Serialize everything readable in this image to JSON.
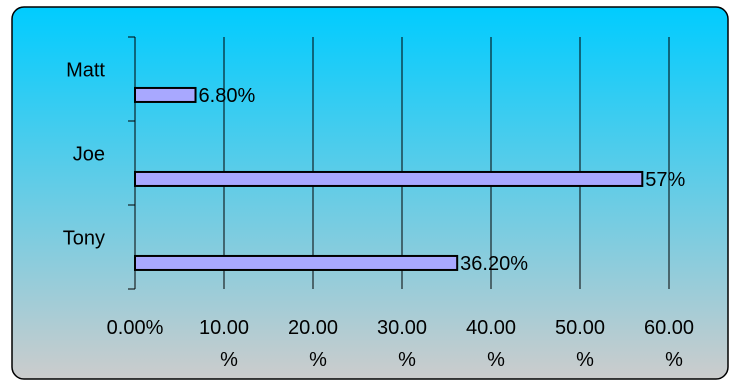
{
  "chart_data": {
    "type": "bar",
    "orientation": "horizontal",
    "categories": [
      "Tony",
      "Joe",
      "Matt"
    ],
    "values": [
      36.2,
      57,
      6.8
    ],
    "data_labels": [
      "36.20%",
      "57%",
      "6.80%"
    ],
    "xlim": [
      0,
      60
    ],
    "x_ticks": [
      0,
      10,
      20,
      30,
      40,
      50,
      60
    ],
    "x_tick_labels": [
      [
        "0.00%"
      ],
      [
        "10.00",
        "%"
      ],
      [
        "20.00",
        "%"
      ],
      [
        "30.00",
        "%"
      ],
      [
        "40.00",
        "%"
      ],
      [
        "50.00",
        "%"
      ],
      [
        "60.00",
        "%"
      ]
    ],
    "title": "",
    "xlabel": "",
    "ylabel": "",
    "grid": true,
    "legend": "none",
    "colors": {
      "bar_fill": "#a8a8ff",
      "bar_stroke": "#000000",
      "background_top": "#00ccff",
      "background_bottom": "#cccccc",
      "gridline": "#000000",
      "frame": "#000000"
    }
  }
}
